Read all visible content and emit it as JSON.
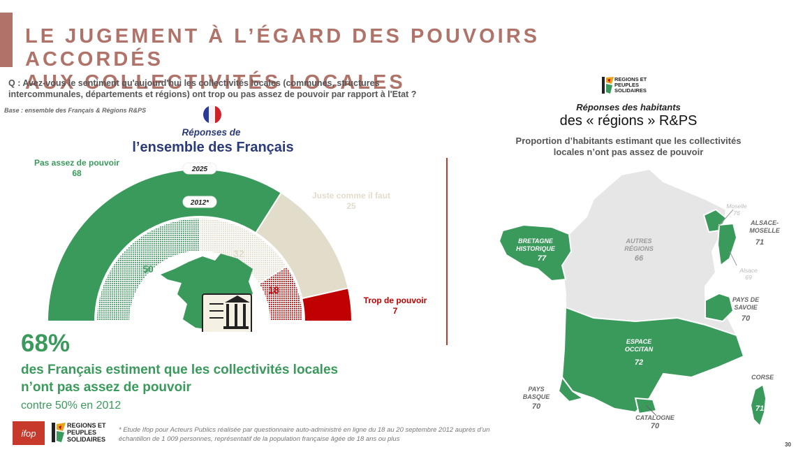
{
  "header": {
    "title_line1": "LE JUGEMENT À L’ÉGARD DES POUVOIRS ACCORDÉS",
    "title_line2": "AUX COLLECTIVITÉS LOCALES",
    "question_line1": "Q : Avez-vous le sentiment qu'aujourd'hui les collectivités locales (communes, structures",
    "question_line2": "intercommunales, départements et régions) ont trop ou pas assez de pouvoir par rapport à l'Etat ?",
    "base": "Base : ensemble des Français & Régions R&PS"
  },
  "france_panel": {
    "heading_line1": "Réponses de",
    "heading_line2": "l’ensemble des Français",
    "big_percent": "68%",
    "summary_line1": "des Français estiment que les collectivités locales",
    "summary_line2": "n’ont pas assez de pouvoir",
    "compare": "contre 50% en 2012"
  },
  "chart_data": [
    {
      "type": "pie",
      "variant": "semi-donut",
      "series": [
        {
          "name": "2025",
          "values": [
            68,
            25,
            7
          ],
          "labels": [
            {
              "label_line1": "Pas assez de pouvoir",
              "value": "68"
            },
            {
              "label_line1": "Juste comme il faut",
              "value": "25"
            },
            {
              "label_line1": "Trop de pouvoir",
              "value": "7"
            }
          ]
        },
        {
          "name": "2012*",
          "values": [
            50,
            32,
            18
          ],
          "value_labels": [
            "50",
            "32",
            "18"
          ]
        }
      ],
      "categories": [
        "Pas assez de pouvoir",
        "Juste comme il faut",
        "Trop de pouvoir"
      ],
      "colors": [
        "#3a9a5b",
        "#e2dccb",
        "#c00000"
      ]
    },
    {
      "type": "map",
      "regions": [
        {
          "name_line1": "BRETAGNE",
          "name_line2": "HISTORIQUE",
          "value": 77
        },
        {
          "name_line1": "AUTRES",
          "name_line2": "RÉGIONS",
          "value": 66
        },
        {
          "name_line1": "ALSACE-",
          "name_line2": "MOSELLE",
          "value": 71
        },
        {
          "name_line1": "Moselle",
          "name_line2": "",
          "value": 76
        },
        {
          "name_line1": "Alsace",
          "name_line2": "",
          "value": 69
        },
        {
          "name_line1": "PAYS DE",
          "name_line2": "SAVOIE",
          "value": 70
        },
        {
          "name_line1": "ESPACE",
          "name_line2": "OCCITAN",
          "value": 72
        },
        {
          "name_line1": "PAYS",
          "name_line2": "BASQUE",
          "value": 70
        },
        {
          "name_line1": "CATALOGNE",
          "name_line2": "",
          "value": 70
        },
        {
          "name_line1": "CORSE",
          "name_line2": "",
          "value": 71
        }
      ],
      "colors": {
        "highlight": "#3a9a5b",
        "other": "#e6e6e6"
      }
    }
  ],
  "regions_panel": {
    "heading_line1": "Réponses des habitants",
    "heading_line2": "des « régions » R&PS",
    "sub_line1": "Proportion d’habitants estimant que les collectivités",
    "sub_line2": "locales n’ont pas assez de pouvoir",
    "brand_line1": "REGIONS ET",
    "brand_line2": "PEUPLES",
    "brand_line3": "SOLIDAIRES"
  },
  "footer": {
    "footnote_line1": "* Etude Ifop pour Acteurs Publics réalisée par questionnaire auto-administré en ligne du 18 au 20 septembre 2012 auprès d’un",
    "footnote_line2": "échantillon de 1 009 personnes, représentatif de la population française âgée de 18 ans ou plus",
    "ifop_logo": "ifop",
    "brand_line1": "REGIONS ET",
    "brand_line2": "PEUPLES",
    "brand_line3": "SOLIDAIRES",
    "page_number": "30"
  },
  "icons": [
    "france-flag-icon",
    "france-map-icon",
    "document-institution-icon",
    "rps-logo-icon",
    "ifop-logo"
  ]
}
